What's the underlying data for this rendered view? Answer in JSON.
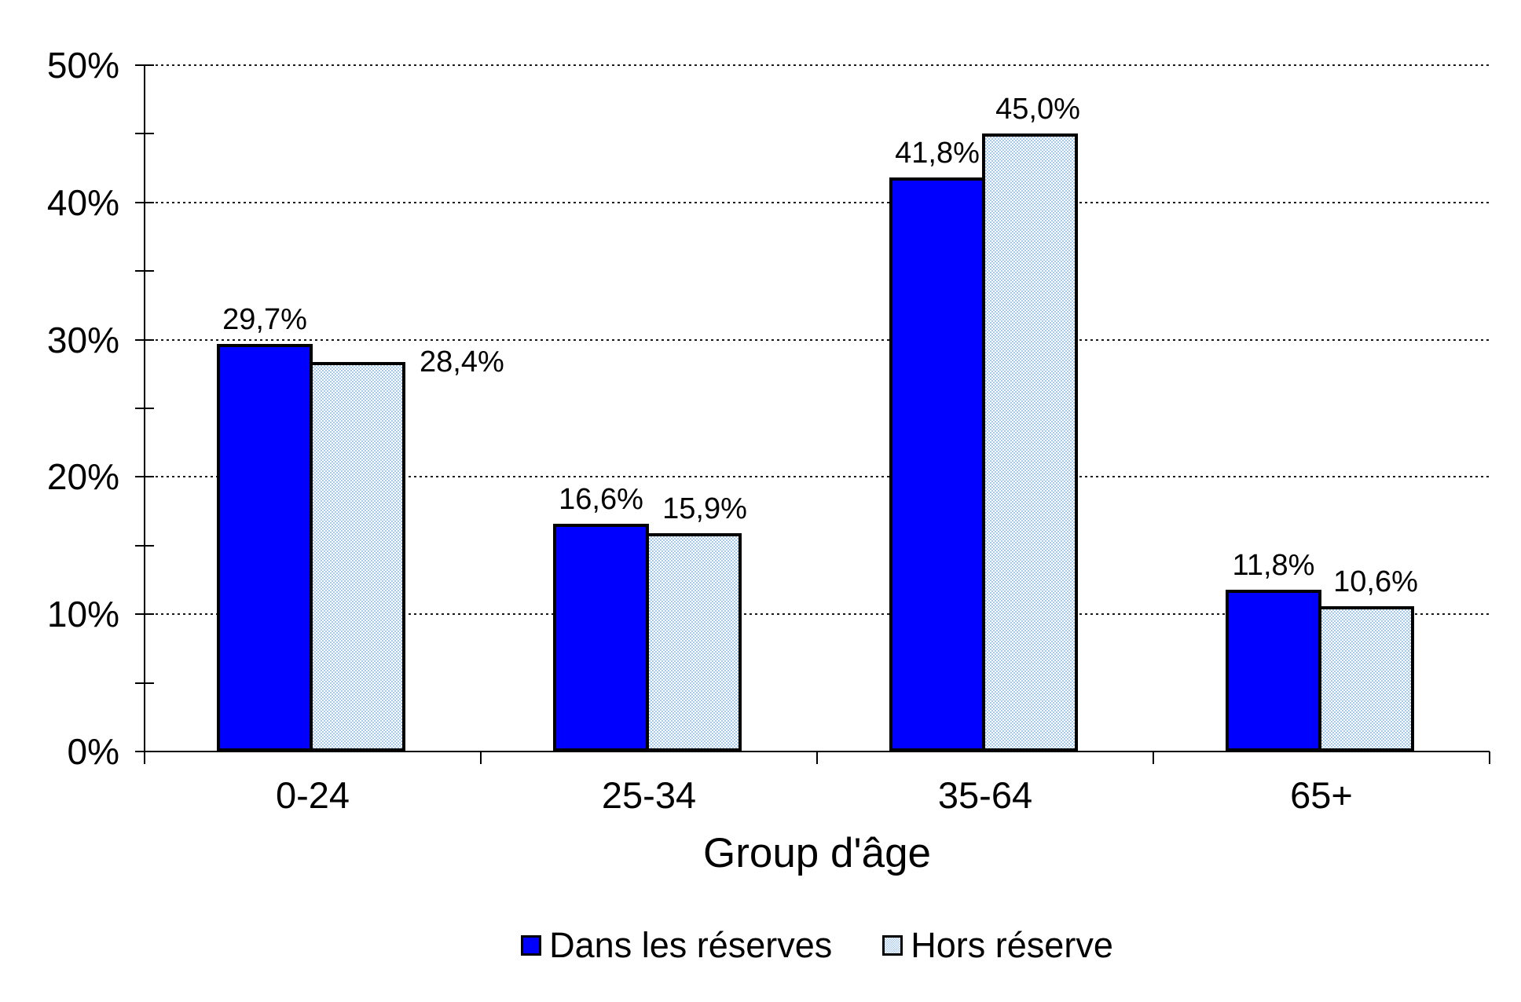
{
  "chart_data": {
    "type": "bar",
    "title": "",
    "xlabel": "Group d'âge",
    "ylabel": "",
    "categories": [
      "0-24",
      "25-34",
      "35-64",
      "65+"
    ],
    "series": [
      {
        "name": "Dans les réserves",
        "key": "dans-les-reserves",
        "style": "solid",
        "color": "#0000ff",
        "values": [
          29.7,
          16.6,
          41.8,
          11.8
        ],
        "labels": [
          "29,7%",
          "16,6%",
          "41,8%",
          "11,8%"
        ]
      },
      {
        "name": "Hors réserve",
        "key": "hors-reserve",
        "style": "checker",
        "color": "#a6caec",
        "values": [
          28.4,
          15.9,
          45.0,
          10.6
        ],
        "labels": [
          "28,4%",
          "15,9%",
          "45,0%",
          "10,6%"
        ]
      }
    ],
    "y_axis": {
      "min": 0,
      "max": 50,
      "major_step": 10,
      "minor_step": 5,
      "tick_labels": [
        "0%",
        "10%",
        "20%",
        "30%",
        "40%",
        "50%"
      ],
      "grid": "dotted-horizontal"
    },
    "legend_position": "bottom",
    "border_color": "#000000",
    "label_layout": {
      "series2_modes": [
        "side",
        "above",
        "above",
        "above"
      ],
      "series2_dx": [
        14,
        10,
        6,
        8
      ]
    }
  }
}
